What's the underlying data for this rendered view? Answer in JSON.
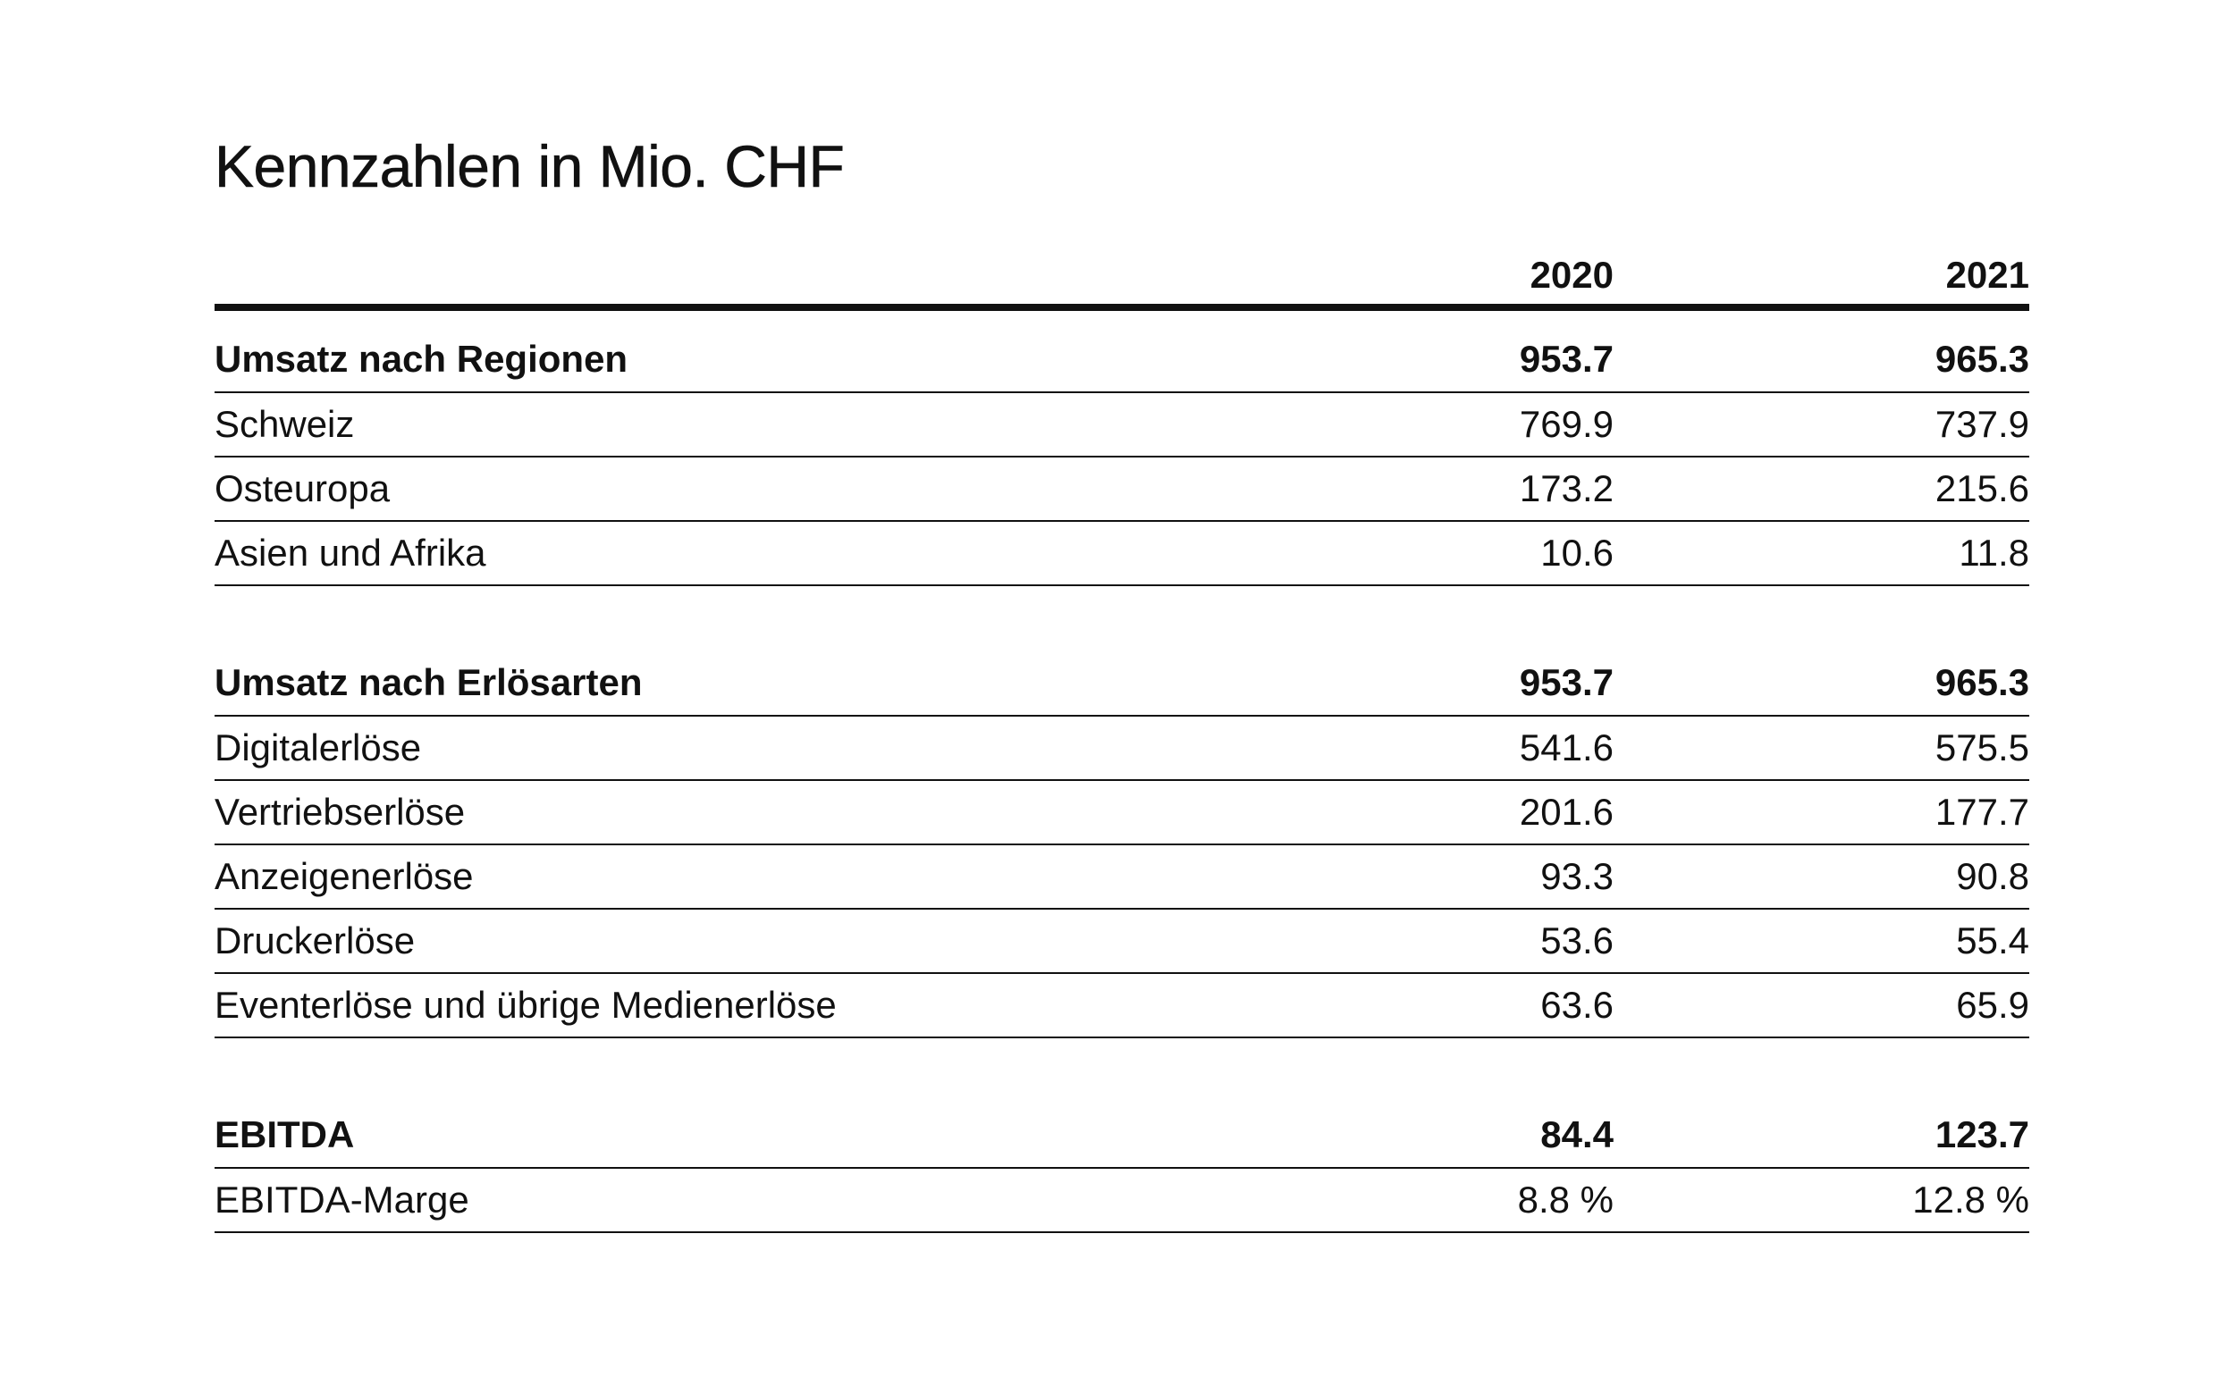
{
  "title": "Kennzahlen in Mio. CHF",
  "columns": {
    "label": "",
    "year1": "2020",
    "year2": "2021"
  },
  "sections": [
    {
      "total": {
        "label": "Umsatz nach Regionen",
        "v2020": "953.7",
        "v2021": "965.3"
      },
      "rows": [
        {
          "label": "Schweiz",
          "v2020": "769.9",
          "v2021": "737.9"
        },
        {
          "label": "Osteuropa",
          "v2020": "173.2",
          "v2021": "215.6"
        },
        {
          "label": "Asien und Afrika",
          "v2020": "10.6",
          "v2021": "11.8"
        }
      ]
    },
    {
      "total": {
        "label": "Umsatz nach Erlösarten",
        "v2020": "953.7",
        "v2021": "965.3"
      },
      "rows": [
        {
          "label": "Digitalerlöse",
          "v2020": "541.6",
          "v2021": "575.5"
        },
        {
          "label": "Vertriebserlöse",
          "v2020": "201.6",
          "v2021": "177.7"
        },
        {
          "label": "Anzeigenerlöse",
          "v2020": "93.3",
          "v2021": "90.8"
        },
        {
          "label": "Druckerlöse",
          "v2020": "53.6",
          "v2021": "55.4"
        },
        {
          "label": "Eventerlöse und übrige Medienerlöse",
          "v2020": "63.6",
          "v2021": "65.9"
        }
      ]
    },
    {
      "total": {
        "label": "EBITDA",
        "v2020": "84.4",
        "v2021": "123.7"
      },
      "rows": [
        {
          "label": "EBITDA-Marge",
          "v2020": "8.8 %",
          "v2021": "12.8 %"
        }
      ]
    }
  ]
}
